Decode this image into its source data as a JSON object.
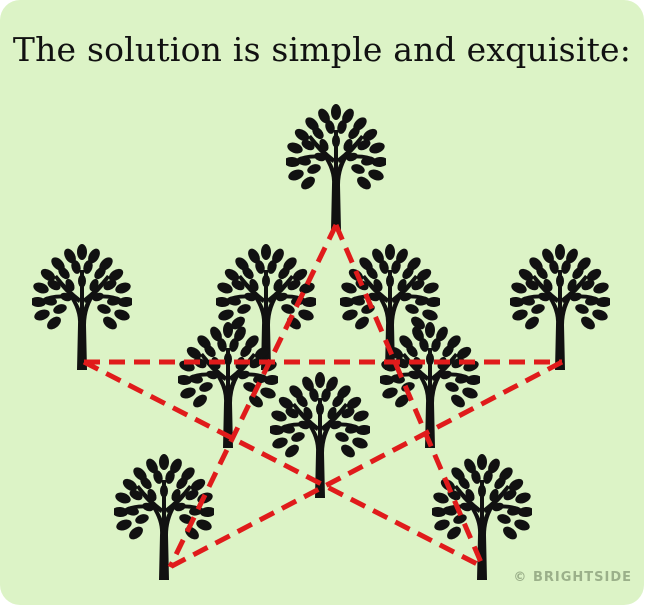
{
  "title": "The solution is simple and exquisite:",
  "watermark": "© BRIGHTSIDE",
  "colors": {
    "background": "#dcf3c6",
    "tree": "#111111",
    "line": "#e01b1b"
  },
  "trees": [
    {
      "id": "top-center"
    },
    {
      "id": "left-outer"
    },
    {
      "id": "right-outer"
    },
    {
      "id": "inner-left-back"
    },
    {
      "id": "inner-right-back"
    },
    {
      "id": "inner-left-front"
    },
    {
      "id": "inner-right-front"
    },
    {
      "id": "center"
    },
    {
      "id": "bottom-left"
    },
    {
      "id": "bottom-right"
    }
  ]
}
